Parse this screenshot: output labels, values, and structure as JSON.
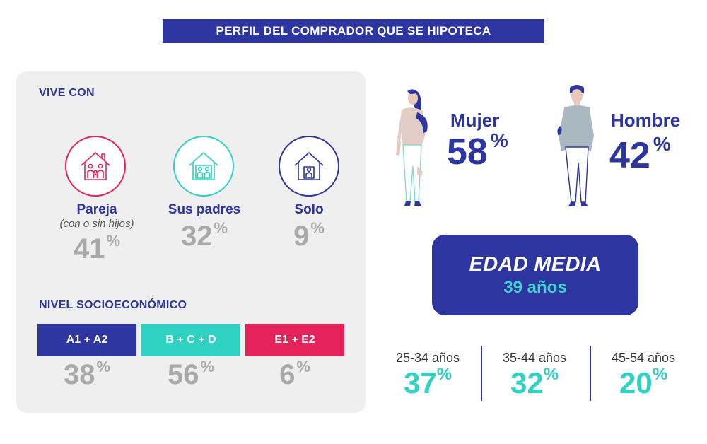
{
  "title": "PERFIL DEL COMPRADOR QUE SE HIPOTECA",
  "vive_con": {
    "label": "VIVE CON",
    "items": [
      {
        "label": "Pareja",
        "sublabel": "(con o sin hijos)",
        "value": "41",
        "unit": "%",
        "color": "#e5225a",
        "icon": "family-house-icon"
      },
      {
        "label": "Sus padres",
        "value": "32",
        "unit": "%",
        "color": "#2ed1c2",
        "icon": "parents-house-icon"
      },
      {
        "label": "Solo",
        "value": "9",
        "unit": "%",
        "color": "#2d35a0",
        "icon": "single-house-icon"
      }
    ]
  },
  "nivel": {
    "label": "NIVEL SOCIOECONÓMICO",
    "items": [
      {
        "label": "A1 + A2",
        "value": "38",
        "unit": "%",
        "color": "#2d35a0"
      },
      {
        "label": "B + C + D",
        "value": "56",
        "unit": "%",
        "color": "#2ed1c2"
      },
      {
        "label": "E1 + E2",
        "value": "6",
        "unit": "%",
        "color": "#e5225a"
      }
    ]
  },
  "genero": [
    {
      "label": "Mujer",
      "value": "58",
      "unit": "%",
      "icon": "woman-figure-icon"
    },
    {
      "label": "Hombre",
      "value": "42",
      "unit": "%",
      "icon": "man-figure-icon"
    }
  ],
  "edad": {
    "title": "EDAD MEDIA",
    "value": "39 años"
  },
  "rangos": [
    {
      "range": "25-34 años",
      "value": "37",
      "unit": "%"
    },
    {
      "range": "35-44 años",
      "value": "32",
      "unit": "%"
    },
    {
      "range": "45-54 años",
      "value": "20",
      "unit": "%"
    }
  ],
  "colors": {
    "primary": "#2d35a0",
    "teal": "#2ed1c2",
    "pink": "#e5225a",
    "grey": "#a9a9a9"
  }
}
